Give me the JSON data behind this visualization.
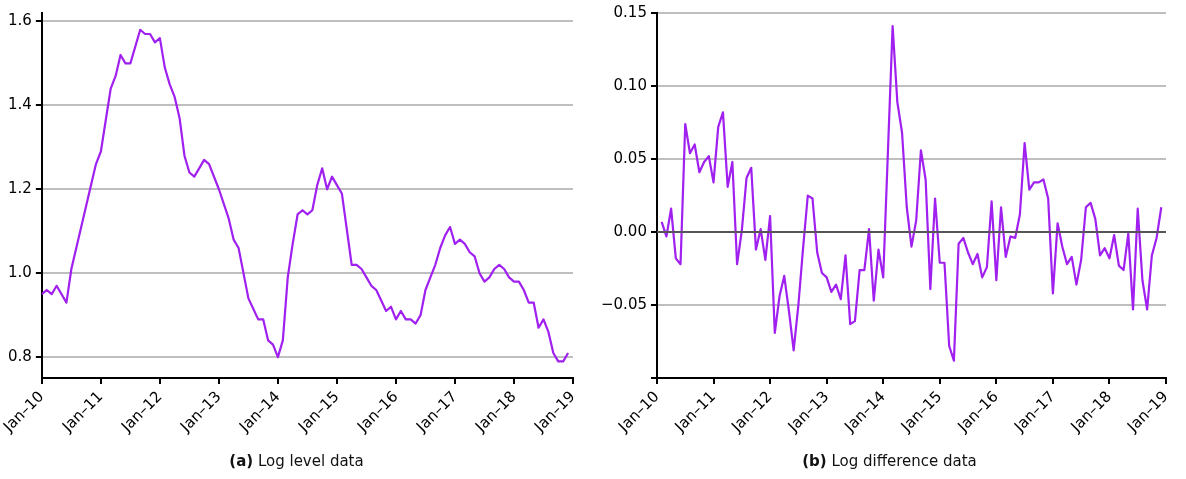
{
  "chart_data": [
    {
      "type": "line",
      "title": "(a) Log level data",
      "grid": "y",
      "marker": "none",
      "line_style": "solid",
      "xlim": [
        "2010-01",
        "2019-01"
      ],
      "xticks": [
        {
          "value": "2010-01",
          "label": "Jan–10"
        },
        {
          "value": "2011-01",
          "label": "Jan–11"
        },
        {
          "value": "2012-01",
          "label": "Jan–12"
        },
        {
          "value": "2013-01",
          "label": "Jan–13"
        },
        {
          "value": "2014-01",
          "label": "Jan–14"
        },
        {
          "value": "2015-01",
          "label": "Jan–15"
        },
        {
          "value": "2016-01",
          "label": "Jan–16"
        },
        {
          "value": "2017-01",
          "label": "Jan–17"
        },
        {
          "value": "2018-01",
          "label": "Jan–18"
        },
        {
          "value": "2019-01",
          "label": "Jan–19"
        }
      ],
      "ylim": [
        0.75,
        1.62
      ],
      "yticks": [
        0.8,
        {
          "value": 1,
          "label": "1.0"
        },
        1.2,
        1.4,
        1.6
      ],
      "series": [
        {
          "color": "#a020f0",
          "x": [
            "2010-01",
            "2010-02",
            "2010-03",
            "2010-04",
            "2010-06",
            "2010-07",
            "2010-09",
            "2010-10",
            "2010-12",
            "2011-01",
            "2011-03",
            "2011-04",
            "2011-05",
            "2011-06",
            "2011-07",
            "2011-09",
            "2011-10",
            "2011-11",
            "2011-12",
            "2012-01",
            "2012-02",
            "2012-03",
            "2012-04",
            "2012-05",
            "2012-06",
            "2012-07",
            "2012-08",
            "2012-10",
            "2012-11",
            "2013-01",
            "2013-03",
            "2013-04",
            "2013-05",
            "2013-07",
            "2013-09",
            "2013-10",
            "2013-11",
            "2013-12",
            "2014-01",
            "2014-02",
            "2014-03",
            "2014-04",
            "2014-05",
            "2014-06",
            "2014-07",
            "2014-08",
            "2014-09",
            "2014-10",
            "2014-11",
            "2014-12",
            "2015-01",
            "2015-02",
            "2015-04",
            "2015-05",
            "2015-06",
            "2015-07",
            "2015-08",
            "2015-09",
            "2015-11",
            "2015-12",
            "2016-01",
            "2016-02",
            "2016-03",
            "2016-04",
            "2016-05",
            "2016-06",
            "2016-07",
            "2016-08",
            "2016-09",
            "2016-10",
            "2016-11",
            "2016-12",
            "2017-01",
            "2017-02",
            "2017-03",
            "2017-04",
            "2017-05",
            "2017-06",
            "2017-07",
            "2017-08",
            "2017-09",
            "2017-10",
            "2017-11",
            "2017-12",
            "2018-01",
            "2018-02",
            "2018-03",
            "2018-04",
            "2018-05",
            "2018-06",
            "2018-07",
            "2018-08",
            "2018-09",
            "2018-10",
            "2018-11",
            "2018-12"
          ],
          "values": [
            0.95,
            0.96,
            0.95,
            0.97,
            0.93,
            1.01,
            1.11,
            1.16,
            1.26,
            1.29,
            1.44,
            1.47,
            1.52,
            1.5,
            1.5,
            1.58,
            1.57,
            1.57,
            1.55,
            1.56,
            1.49,
            1.45,
            1.42,
            1.37,
            1.28,
            1.24,
            1.23,
            1.27,
            1.26,
            1.2,
            1.13,
            1.08,
            1.06,
            0.94,
            0.89,
            0.89,
            0.84,
            0.83,
            0.8,
            0.84,
            0.99,
            1.07,
            1.14,
            1.15,
            1.14,
            1.15,
            1.21,
            1.25,
            1.2,
            1.23,
            1.21,
            1.19,
            1.02,
            1.02,
            1.01,
            0.99,
            0.97,
            0.96,
            0.91,
            0.92,
            0.89,
            0.91,
            0.89,
            0.89,
            0.88,
            0.9,
            0.96,
            0.99,
            1.02,
            1.06,
            1.09,
            1.11,
            1.07,
            1.08,
            1.07,
            1.05,
            1.04,
            1.0,
            0.98,
            0.99,
            1.01,
            1.02,
            1.01,
            0.99,
            0.98,
            0.98,
            0.96,
            0.93,
            0.93,
            0.87,
            0.89,
            0.86,
            0.81,
            0.79,
            0.79,
            0.81
          ]
        }
      ]
    },
    {
      "type": "line",
      "title": "(b) Log difference data",
      "grid": "y",
      "marker": "none",
      "line_style": "solid",
      "xlim": [
        "2010-01",
        "2019-01"
      ],
      "xticks": [
        {
          "value": "2010-01",
          "label": "Jan–10"
        },
        {
          "value": "2011-01",
          "label": "Jan–11"
        },
        {
          "value": "2012-01",
          "label": "Jan–12"
        },
        {
          "value": "2013-01",
          "label": "Jan–13"
        },
        {
          "value": "2014-01",
          "label": "Jan–14"
        },
        {
          "value": "2015-01",
          "label": "Jan–15"
        },
        {
          "value": "2016-01",
          "label": "Jan–16"
        },
        {
          "value": "2017-01",
          "label": "Jan–17"
        },
        {
          "value": "2018-01",
          "label": "Jan–18"
        },
        {
          "value": "2019-01",
          "label": "Jan–19"
        }
      ],
      "ylim": [
        -0.1,
        0.15
      ],
      "yticks": [
        {
          "value": -0.1,
          "label": null
        },
        {
          "value": -0.05,
          "label": "−0.05"
        },
        {
          "value": 0,
          "label": "0.00"
        },
        {
          "value": 0.05,
          "label": "0.05"
        },
        {
          "value": 0.1,
          "label": "0.10"
        },
        {
          "value": 0.15,
          "label": "0.15"
        }
      ],
      "ref_lines": [
        {
          "axis": "y",
          "value": 0,
          "color": "#555555"
        }
      ],
      "series": [
        {
          "color": "#a020f0",
          "x": [
            "2010-02",
            "2010-03",
            "2010-04",
            "2010-05",
            "2010-06",
            "2010-07",
            "2010-08",
            "2010-09",
            "2010-10",
            "2010-11",
            "2010-12",
            "2011-01",
            "2011-02",
            "2011-03",
            "2011-04",
            "2011-05",
            "2011-06",
            "2011-07",
            "2011-08",
            "2011-09",
            "2011-10",
            "2011-11",
            "2011-12",
            "2012-01",
            "2012-02",
            "2012-03",
            "2012-04",
            "2012-05",
            "2012-06",
            "2012-07",
            "2012-08",
            "2012-09",
            "2012-10",
            "2012-11",
            "2012-12",
            "2013-01",
            "2013-02",
            "2013-03",
            "2013-04",
            "2013-05",
            "2013-06",
            "2013-07",
            "2013-08",
            "2013-09",
            "2013-10",
            "2013-11",
            "2013-12",
            "2014-01",
            "2014-02",
            "2014-03",
            "2014-04",
            "2014-05",
            "2014-06",
            "2014-07",
            "2014-08",
            "2014-09",
            "2014-10",
            "2014-11",
            "2014-12",
            "2015-01",
            "2015-02",
            "2015-03",
            "2015-04",
            "2015-05",
            "2015-06",
            "2015-07",
            "2015-08",
            "2015-09",
            "2015-10",
            "2015-11",
            "2015-12",
            "2016-01",
            "2016-02",
            "2016-03",
            "2016-04",
            "2016-05",
            "2016-06",
            "2016-07",
            "2016-08",
            "2016-09",
            "2016-10",
            "2016-11",
            "2016-12",
            "2017-01",
            "2017-02",
            "2017-03",
            "2017-04",
            "2017-05",
            "2017-06",
            "2017-07",
            "2017-08",
            "2017-09",
            "2017-10",
            "2017-11",
            "2017-12",
            "2018-01",
            "2018-02",
            "2018-03",
            "2018-04",
            "2018-05",
            "2018-06",
            "2018-07",
            "2018-08",
            "2018-09",
            "2018-10",
            "2018-11",
            "2018-12"
          ],
          "values": [
            0.007,
            -0.003,
            0.016,
            -0.018,
            -0.022,
            0.074,
            0.054,
            0.06,
            0.041,
            0.048,
            0.052,
            0.034,
            0.072,
            0.082,
            0.031,
            0.048,
            -0.022,
            0.001,
            0.037,
            0.044,
            -0.012,
            0.002,
            -0.019,
            0.011,
            -0.069,
            -0.044,
            -0.03,
            -0.054,
            -0.081,
            -0.05,
            -0.011,
            0.025,
            0.023,
            -0.014,
            -0.028,
            -0.031,
            -0.041,
            -0.036,
            -0.046,
            -0.016,
            -0.063,
            -0.061,
            -0.026,
            -0.026,
            0.002,
            -0.047,
            -0.012,
            -0.031,
            0.055,
            0.141,
            0.089,
            0.068,
            0.017,
            -0.01,
            0.008,
            0.056,
            0.036,
            -0.039,
            0.023,
            -0.021,
            -0.021,
            -0.078,
            -0.088,
            -0.008,
            -0.004,
            -0.014,
            -0.022,
            -0.015,
            -0.031,
            -0.024,
            0.021,
            -0.033,
            0.017,
            -0.017,
            -0.003,
            -0.004,
            0.012,
            0.061,
            0.029,
            0.034,
            0.034,
            0.036,
            0.023,
            -0.042,
            0.006,
            -0.01,
            -0.022,
            -0.017,
            -0.036,
            -0.019,
            0.017,
            0.02,
            0.009,
            -0.016,
            -0.011,
            -0.018,
            -0.002,
            -0.023,
            -0.026,
            -0.001,
            -0.053,
            0.016,
            -0.033,
            -0.053,
            -0.016,
            -0.004,
            0.017
          ]
        }
      ]
    }
  ]
}
